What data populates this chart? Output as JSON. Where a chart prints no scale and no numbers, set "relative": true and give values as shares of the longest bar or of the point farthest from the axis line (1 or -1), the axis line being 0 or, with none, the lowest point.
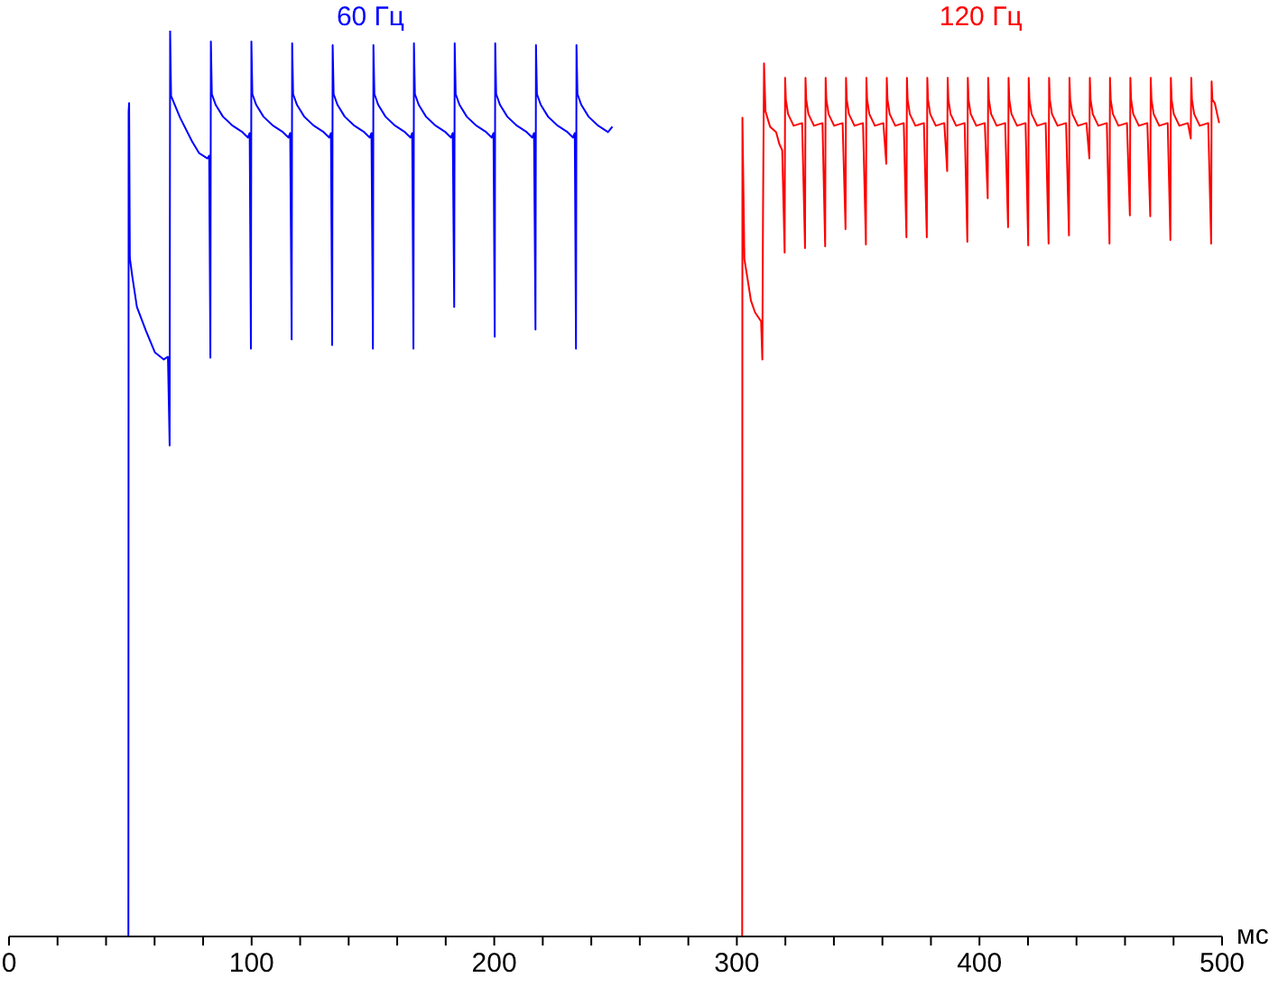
{
  "chart_data": {
    "type": "line",
    "relative": true,
    "xlabel": "мс",
    "xlim": [
      0,
      500
    ],
    "xticks": [
      0,
      {
        "value": 20,
        "label": null
      },
      {
        "value": 40,
        "label": null
      },
      {
        "value": 60,
        "label": null
      },
      {
        "value": 80,
        "label": null
      },
      100,
      {
        "value": 120,
        "label": null
      },
      {
        "value": 140,
        "label": null
      },
      {
        "value": 160,
        "label": null
      },
      {
        "value": 180,
        "label": null
      },
      200,
      {
        "value": 220,
        "label": null
      },
      {
        "value": 240,
        "label": null
      },
      {
        "value": 260,
        "label": null
      },
      {
        "value": 280,
        "label": null
      },
      300,
      {
        "value": 320,
        "label": null
      },
      {
        "value": 340,
        "label": null
      },
      {
        "value": 360,
        "label": null
      },
      {
        "value": 380,
        "label": null
      },
      400,
      {
        "value": 420,
        "label": null
      },
      {
        "value": 440,
        "label": null
      },
      {
        "value": 460,
        "label": null
      },
      {
        "value": 480,
        "label": null
      },
      500
    ],
    "marker": "none",
    "series": [
      {
        "name": "60 Гц",
        "color": "#0000ff",
        "x": [
          0,
          49.2,
          49.3,
          49.5,
          49.8,
          50.8,
          52.7,
          56.4,
          60.1,
          63.8,
          65.5,
          66.2,
          66.4,
          66.8,
          70.5,
          75.4,
          78.3,
          81.8,
          82.5,
          83.0,
          83.2,
          83.6,
          85.2,
          88.2,
          92.2,
          96.2,
          98.5,
          99.2,
          99.7,
          99.9,
          100.3,
          101.9,
          104.9,
          108.9,
          112.9,
          115.2,
          115.9,
          116.5,
          116.7,
          117.1,
          118.7,
          121.7,
          125.7,
          129.7,
          132.0,
          132.7,
          133.2,
          133.4,
          133.8,
          135.4,
          138.4,
          142.4,
          146.4,
          148.7,
          149.4,
          150.0,
          150.2,
          150.6,
          152.2,
          155.2,
          159.2,
          163.2,
          165.5,
          166.2,
          166.7,
          166.9,
          167.3,
          168.9,
          171.9,
          175.9,
          179.9,
          182.2,
          182.9,
          183.5,
          183.7,
          184.1,
          185.7,
          188.7,
          192.7,
          196.7,
          199.0,
          199.7,
          200.2,
          200.4,
          200.8,
          202.4,
          205.4,
          209.4,
          213.4,
          215.7,
          216.4,
          217.0,
          217.2,
          217.6,
          219.2,
          222.2,
          226.2,
          230.2,
          232.5,
          233.2,
          233.7,
          233.9,
          234.3,
          235.9,
          238.9,
          242.9,
          246.9,
          248.7
        ],
        "values": [
          0,
          0,
          0.911,
          0.92,
          0.749,
          0.729,
          0.695,
          0.669,
          0.645,
          0.637,
          0.64,
          0.542,
          1,
          0.928,
          0.904,
          0.878,
          0.865,
          0.859,
          0.862,
          0.639,
          0.988,
          0.93,
          0.918,
          0.905,
          0.895,
          0.888,
          0.882,
          0.887,
          0.649,
          0.988,
          0.93,
          0.918,
          0.905,
          0.895,
          0.888,
          0.882,
          0.887,
          0.659,
          0.986,
          0.93,
          0.918,
          0.905,
          0.895,
          0.888,
          0.882,
          0.887,
          0.653,
          0.984,
          0.93,
          0.918,
          0.905,
          0.895,
          0.888,
          0.882,
          0.887,
          0.649,
          0.984,
          0.93,
          0.918,
          0.905,
          0.895,
          0.888,
          0.882,
          0.887,
          0.649,
          0.986,
          0.93,
          0.918,
          0.905,
          0.895,
          0.888,
          0.882,
          0.887,
          0.695,
          0.986,
          0.93,
          0.918,
          0.905,
          0.895,
          0.888,
          0.882,
          0.887,
          0.662,
          0.986,
          0.93,
          0.918,
          0.905,
          0.895,
          0.888,
          0.882,
          0.887,
          0.67,
          0.984,
          0.93,
          0.918,
          0.905,
          0.895,
          0.888,
          0.882,
          0.887,
          0.649,
          0.984,
          0.93,
          0.918,
          0.905,
          0.895,
          0.888,
          0.894
        ]
      },
      {
        "name": "120 Гц",
        "color": "#ff0000",
        "x": [
          250,
          302.2,
          302.3,
          303.1,
          304.3,
          305.8,
          307.5,
          310.0,
          310.5,
          310.8,
          311.2,
          311.8,
          313.7,
          316.2,
          317.5,
          318.7,
          319.7,
          319.9,
          320.2,
          321.1,
          323.4,
          326.9,
          328.1,
          328.3,
          328.6,
          329.5,
          331.8,
          335.3,
          336.4,
          336.6,
          336.9,
          337.8,
          340.1,
          343.6,
          344.8,
          345.0,
          345.3,
          346.2,
          348.5,
          352.0,
          353.2,
          353.4,
          353.7,
          354.6,
          356.9,
          360.4,
          361.6,
          361.8,
          362.1,
          363.0,
          365.3,
          368.8,
          369.9,
          370.1,
          370.4,
          371.3,
          373.6,
          377.1,
          378.3,
          378.5,
          378.8,
          379.7,
          382.0,
          385.5,
          386.7,
          386.9,
          387.2,
          388.1,
          390.4,
          393.9,
          395.0,
          395.2,
          395.5,
          396.4,
          398.7,
          402.2,
          403.4,
          403.6,
          403.9,
          404.8,
          407.1,
          410.6,
          411.8,
          412.0,
          412.3,
          413.2,
          415.5,
          419.0,
          420.1,
          420.3,
          420.6,
          421.5,
          423.8,
          427.3,
          428.5,
          428.7,
          429.0,
          429.9,
          432.2,
          435.7,
          436.9,
          437.1,
          437.4,
          438.3,
          440.6,
          444.1,
          445.3,
          445.5,
          445.8,
          446.7,
          449.0,
          452.5,
          453.6,
          453.8,
          454.1,
          455.0,
          457.3,
          460.8,
          462.0,
          462.2,
          462.5,
          463.4,
          465.7,
          469.2,
          470.4,
          470.6,
          470.9,
          471.8,
          474.1,
          477.6,
          478.7,
          478.9,
          479.2,
          480.1,
          482.4,
          485.9,
          487.1,
          487.3,
          487.6,
          488.5,
          490.8,
          494.3,
          495.5,
          495.7,
          496.0,
          497.0,
          498.8
        ],
        "values": [
          0,
          0,
          0.904,
          0.748,
          0.728,
          0.702,
          0.689,
          0.679,
          0.637,
          0.805,
          0.964,
          0.911,
          0.894,
          0.888,
          0.875,
          0.868,
          0.755,
          0.948,
          0.924,
          0.908,
          0.895,
          0.898,
          0.76,
          0.948,
          0.924,
          0.908,
          0.895,
          0.898,
          0.762,
          0.948,
          0.924,
          0.908,
          0.895,
          0.898,
          0.781,
          0.948,
          0.924,
          0.908,
          0.895,
          0.898,
          0.764,
          0.948,
          0.924,
          0.908,
          0.895,
          0.898,
          0.853,
          0.948,
          0.924,
          0.908,
          0.895,
          0.898,
          0.772,
          0.948,
          0.924,
          0.908,
          0.895,
          0.898,
          0.772,
          0.948,
          0.924,
          0.908,
          0.895,
          0.898,
          0.845,
          0.948,
          0.924,
          0.908,
          0.895,
          0.898,
          0.767,
          0.948,
          0.924,
          0.908,
          0.895,
          0.898,
          0.815,
          0.948,
          0.924,
          0.908,
          0.895,
          0.898,
          0.783,
          0.948,
          0.924,
          0.908,
          0.895,
          0.898,
          0.763,
          0.948,
          0.924,
          0.908,
          0.895,
          0.898,
          0.765,
          0.948,
          0.924,
          0.908,
          0.895,
          0.898,
          0.774,
          0.948,
          0.924,
          0.908,
          0.895,
          0.898,
          0.859,
          0.948,
          0.924,
          0.908,
          0.895,
          0.898,
          0.765,
          0.948,
          0.924,
          0.908,
          0.895,
          0.898,
          0.796,
          0.948,
          0.924,
          0.908,
          0.895,
          0.898,
          0.795,
          0.948,
          0.924,
          0.908,
          0.895,
          0.898,
          0.769,
          0.948,
          0.924,
          0.908,
          0.895,
          0.898,
          0.881,
          0.948,
          0.924,
          0.908,
          0.895,
          0.898,
          0.765,
          0.944,
          0.924,
          0.92,
          0.898
        ]
      }
    ]
  }
}
